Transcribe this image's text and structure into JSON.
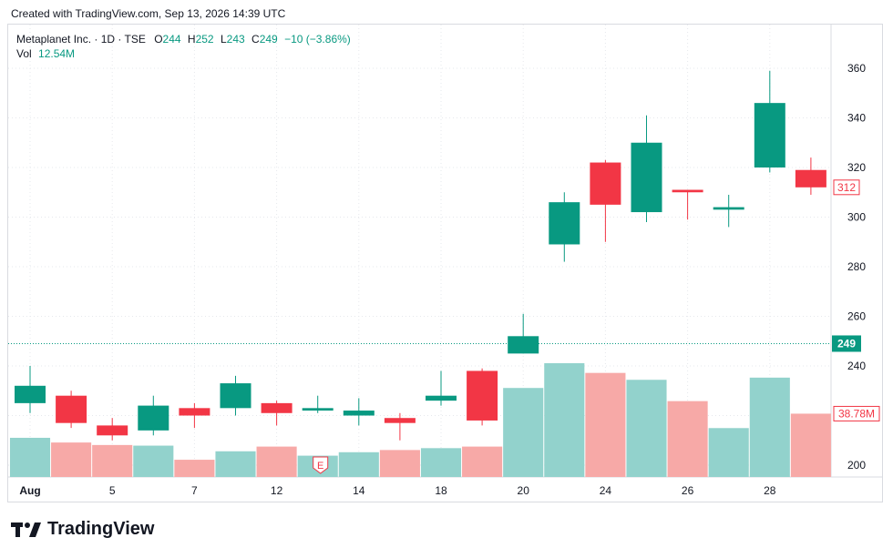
{
  "header": {
    "created_text": "Created with TradingView.com, Sep 13, 2026 14:39 UTC"
  },
  "legend": {
    "symbol": "Metaplanet Inc. · 1D · TSE",
    "o_label": "O",
    "o_value": "244",
    "h_label": "H",
    "h_value": "252",
    "l_label": "L",
    "l_value": "243",
    "c_label": "C",
    "c_value": "249",
    "change": "−10 (−3.86%)",
    "vol_label": "Vol",
    "vol_value": "12.54M"
  },
  "brand": {
    "name": "TradingView"
  },
  "colors": {
    "up": "#089981",
    "down": "#f23645",
    "up_vol": "#92d2cc",
    "down_vol": "#f7a9a7"
  },
  "chart_data": {
    "type": "candlestick",
    "symbol": "Metaplanet Inc.",
    "interval": "1D",
    "exchange": "TSE",
    "ylim": [
      195,
      365
    ],
    "y_ticks": [
      200,
      220,
      240,
      260,
      280,
      300,
      320,
      340,
      360
    ],
    "x_tick_labels": [
      {
        "index": 0,
        "label": "Aug"
      },
      {
        "index": 2,
        "label": "5"
      },
      {
        "index": 4,
        "label": "7"
      },
      {
        "index": 6,
        "label": "12"
      },
      {
        "index": 8,
        "label": "14"
      },
      {
        "index": 10,
        "label": "18"
      },
      {
        "index": 12,
        "label": "20"
      },
      {
        "index": 14,
        "label": "24"
      },
      {
        "index": 16,
        "label": "26"
      },
      {
        "index": 18,
        "label": "28"
      }
    ],
    "candles": [
      {
        "o": 225,
        "h": 240,
        "l": 221,
        "c": 232
      },
      {
        "o": 228,
        "h": 230,
        "l": 215,
        "c": 217
      },
      {
        "o": 216,
        "h": 219,
        "l": 210,
        "c": 212
      },
      {
        "o": 214,
        "h": 228,
        "l": 212,
        "c": 224
      },
      {
        "o": 223,
        "h": 225,
        "l": 215,
        "c": 220
      },
      {
        "o": 223,
        "h": 236,
        "l": 220,
        "c": 233
      },
      {
        "o": 225,
        "h": 226,
        "l": 216,
        "c": 221
      },
      {
        "o": 222,
        "h": 228,
        "l": 221,
        "c": 223
      },
      {
        "o": 220,
        "h": 227,
        "l": 216,
        "c": 222
      },
      {
        "o": 219,
        "h": 221,
        "l": 210,
        "c": 217
      },
      {
        "o": 226,
        "h": 238,
        "l": 224,
        "c": 228
      },
      {
        "o": 238,
        "h": 239,
        "l": 216,
        "c": 218
      },
      {
        "o": 245,
        "h": 261,
        "l": 245,
        "c": 252
      },
      {
        "o": 289,
        "h": 310,
        "l": 282,
        "c": 306
      },
      {
        "o": 322,
        "h": 323,
        "l": 290,
        "c": 305
      },
      {
        "o": 302,
        "h": 341,
        "l": 298,
        "c": 330
      },
      {
        "o": 311,
        "h": 311,
        "l": 299,
        "c": 310
      },
      {
        "o": 303,
        "h": 309,
        "l": 296,
        "c": 304
      },
      {
        "o": 320,
        "h": 359,
        "l": 318,
        "c": 346
      },
      {
        "o": 319,
        "h": 324,
        "l": 309,
        "c": 312
      }
    ],
    "volume_unit": "M",
    "volumes": [
      12.5,
      11.0,
      10.2,
      10.0,
      5.5,
      8.2,
      9.7,
      6.8,
      7.9,
      8.6,
      9.2,
      9.7,
      28.4,
      36.3,
      33.2,
      31.0,
      24.2,
      15.6,
      31.7,
      20.2
    ],
    "last_price_label": "249",
    "last_close_label": "312",
    "last_volume_label": "38.78M",
    "event_marker": {
      "index": 7,
      "label": "E"
    },
    "grid": true
  }
}
